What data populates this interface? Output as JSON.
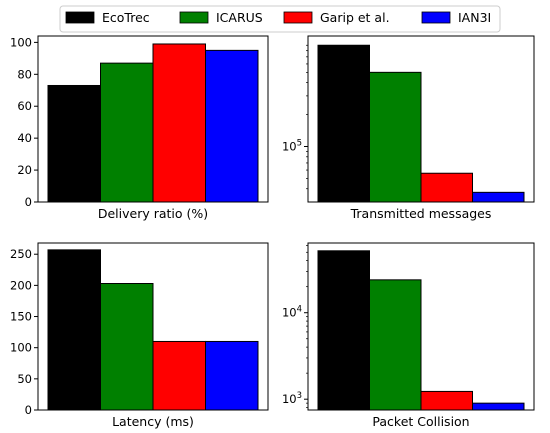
{
  "legend": [
    "EcoTrec",
    "ICARUS",
    "Garip et al.",
    "IAN3I"
  ],
  "colors": [
    "#000000",
    "#008000",
    "#ff0000",
    "#0000ff"
  ],
  "chart_data": [
    {
      "type": "bar",
      "xlabel": "Delivery ratio (%)",
      "yscale": "linear",
      "ylim": [
        0,
        104
      ],
      "yticks": [
        0,
        20,
        40,
        60,
        80,
        100
      ],
      "categories": [
        "EcoTrec",
        "ICARUS",
        "Garip et al.",
        "IAN3I"
      ],
      "values": [
        73,
        87,
        99,
        95
      ]
    },
    {
      "type": "bar",
      "xlabel": "Transmitted messages",
      "yscale": "log",
      "ylim": [
        30000,
        1100000
      ],
      "yticks": [
        100000
      ],
      "yticklabels": [
        "10^5"
      ],
      "categories": [
        "EcoTrec",
        "ICARUS",
        "Garip et al.",
        "IAN3I"
      ],
      "values": [
        900000,
        500000,
        56000,
        37000
      ]
    },
    {
      "type": "bar",
      "xlabel": "Latency (ms)",
      "yscale": "linear",
      "ylim": [
        0,
        268
      ],
      "yticks": [
        0,
        50,
        100,
        150,
        200,
        250
      ],
      "categories": [
        "EcoTrec",
        "ICARUS",
        "Garip et al.",
        "IAN3I"
      ],
      "values": [
        257,
        203,
        110,
        110
      ]
    },
    {
      "type": "bar",
      "xlabel": "Packet Collision",
      "yscale": "log",
      "ylim": [
        750,
        64000
      ],
      "yticks": [
        1000,
        10000
      ],
      "yticklabels": [
        "10^3",
        "10^4"
      ],
      "categories": [
        "EcoTrec",
        "ICARUS",
        "Garip et al.",
        "IAN3I"
      ],
      "values": [
        52000,
        24000,
        1230,
        900
      ]
    }
  ]
}
